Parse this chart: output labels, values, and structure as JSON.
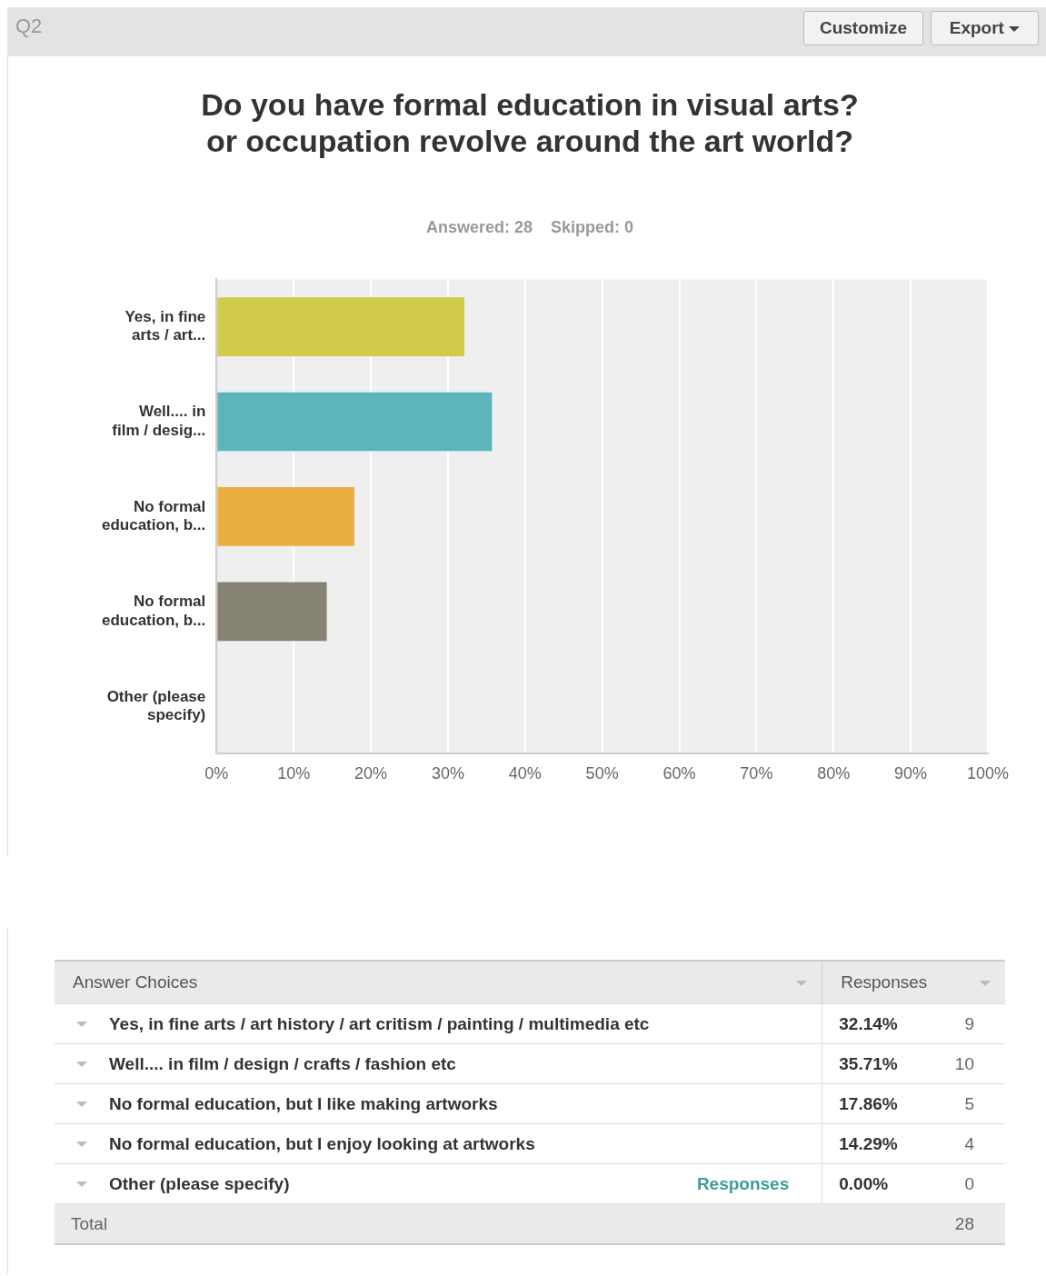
{
  "chart_data": {
    "type": "bar",
    "orientation": "horizontal",
    "title": "Do you have formal education in visual arts? or occupation revolve around the art world?",
    "subtitle": "Answered: 28    Skipped: 0",
    "categories": [
      "Yes, in fine arts / art...",
      "Well.... in film / desig...",
      "No formal education, b...",
      "No formal education, b...",
      "Other (please specify)"
    ],
    "values": [
      32.14,
      35.71,
      17.86,
      14.29,
      0
    ],
    "colors": [
      "#d0cb48",
      "#5db5bc",
      "#ebae41",
      "#878374",
      "#5c8fc4"
    ],
    "xlim": [
      0,
      100
    ],
    "xticks": [
      {
        "value": 0,
        "label": "0%"
      },
      {
        "value": 10,
        "label": "10%"
      },
      {
        "value": 20,
        "label": "20%"
      },
      {
        "value": 30,
        "label": "30%"
      },
      {
        "value": 40,
        "label": "40%"
      },
      {
        "value": 50,
        "label": "50%"
      },
      {
        "value": 60,
        "label": "60%"
      },
      {
        "value": 70,
        "label": "70%"
      },
      {
        "value": 80,
        "label": "80%"
      },
      {
        "value": 90,
        "label": "90%"
      },
      {
        "value": 100,
        "label": "100%"
      }
    ],
    "grid": "x",
    "legend": false,
    "annotations": [
      "Q2",
      "Customize",
      "Export",
      "Answer Choices",
      "Responses",
      "Yes, in fine arts / art history / art critism / painting / multimedia etc",
      "Well.... in film / design / crafts / fashion etc",
      "No formal education, but I like making artworks",
      "No formal education, but I enjoy looking at artworks",
      "Other (please specify)",
      "Responses",
      "32.14%",
      "35.71%",
      "17.86%",
      "14.29%",
      "0.00%",
      "9",
      "10",
      "5",
      "4",
      "0",
      "Total",
      "28"
    ]
  }
}
